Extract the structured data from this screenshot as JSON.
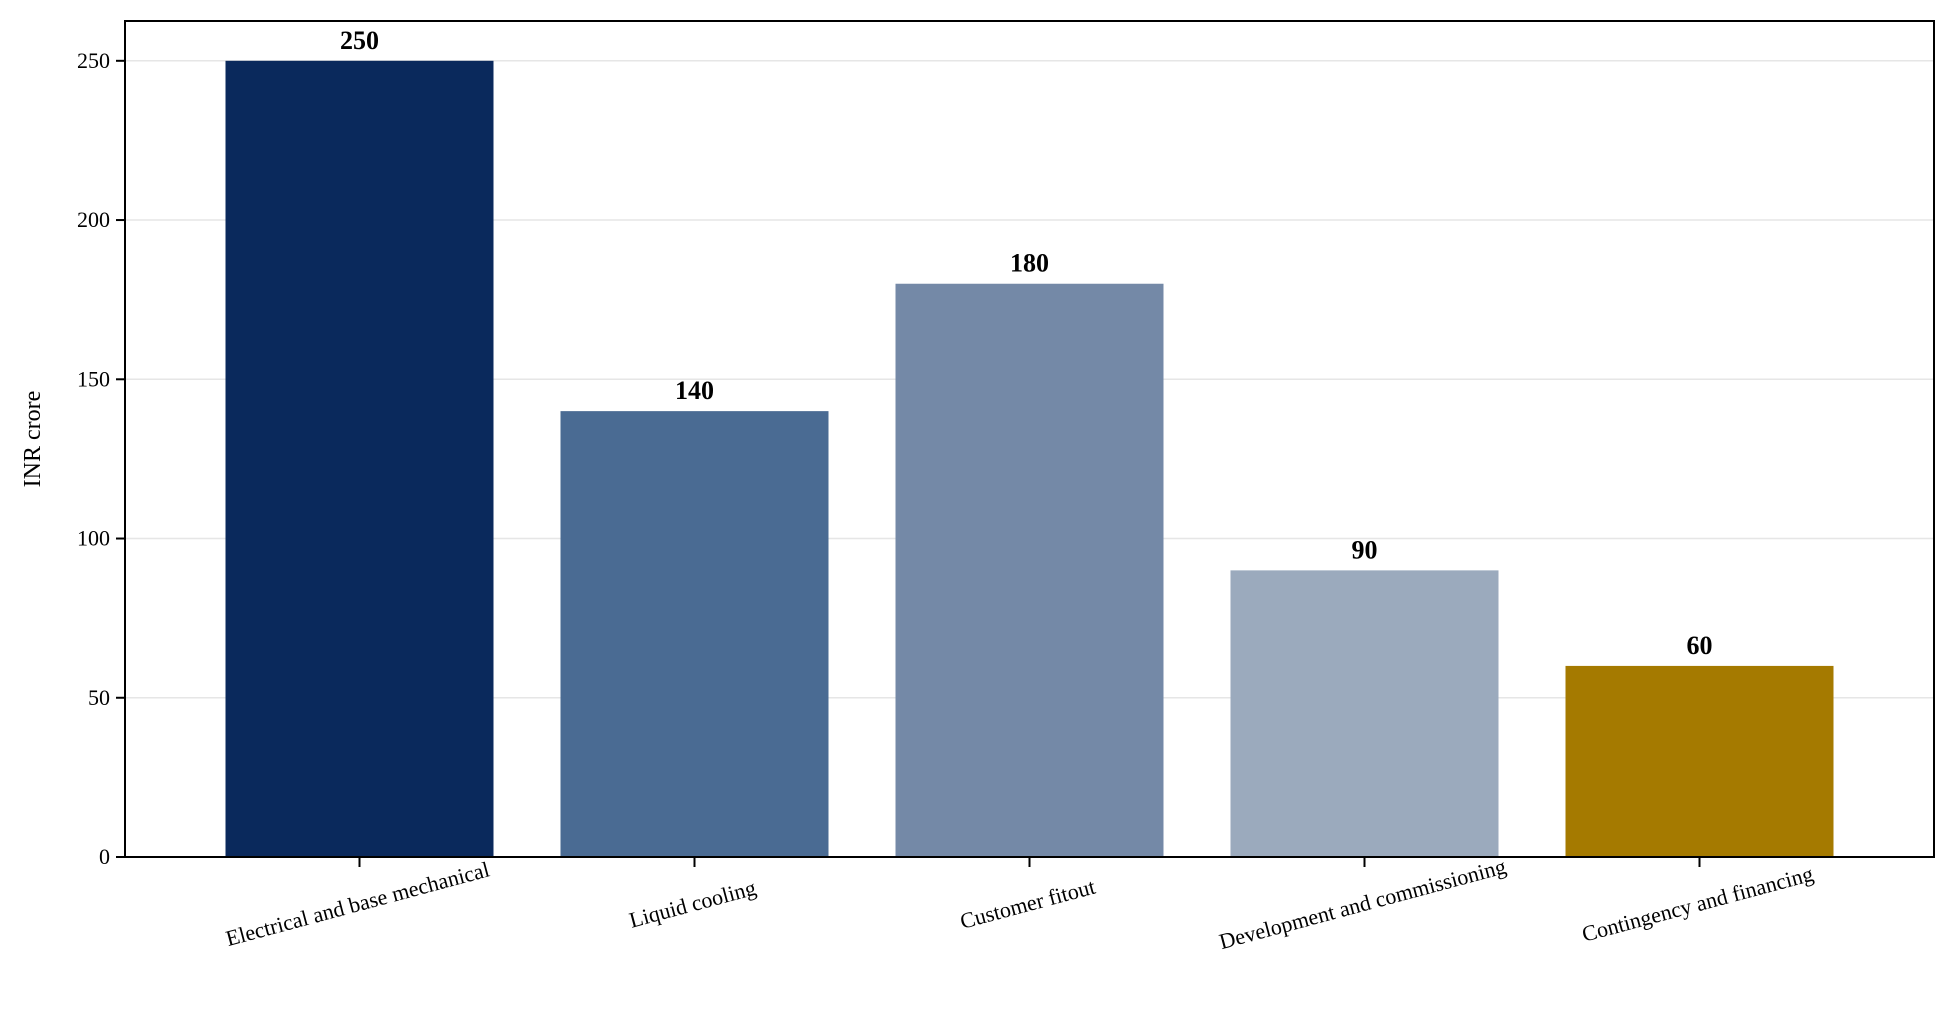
{
  "chart_data": {
    "type": "bar",
    "title": "",
    "xlabel": "",
    "ylabel": "INR crore",
    "ylim": [
      0,
      262.5
    ],
    "yticks": [
      0,
      50,
      100,
      150,
      200,
      250
    ],
    "grid": "y",
    "categories": [
      "Electrical and base mechanical",
      "Liquid cooling",
      "Customer fitout",
      "Development and commissioning",
      "Contingency and financing"
    ],
    "values": [
      250,
      140,
      180,
      90,
      60
    ],
    "colors": [
      "#0a295c",
      "#4a6b93",
      "#7489a7",
      "#9baabd",
      "#a57a00"
    ],
    "gridline_color": "#e6e6e6"
  }
}
